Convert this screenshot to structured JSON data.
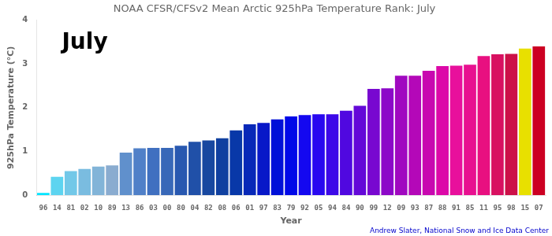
{
  "chart_data": {
    "type": "bar",
    "title": "NOAA CFSR/CFSv2 Mean Arctic 925hPa Temperature Rank: July",
    "xlabel": "Year",
    "ylabel": "925hPa Temperature (°C)",
    "annotations": [
      "July",
      "Andrew Slater, National Snow and Ice Data Center"
    ],
    "categories": [
      "96",
      "14",
      "81",
      "02",
      "10",
      "89",
      "13",
      "86",
      "03",
      "00",
      "80",
      "04",
      "82",
      "08",
      "06",
      "01",
      "97",
      "83",
      "79",
      "92",
      "05",
      "94",
      "84",
      "90",
      "99",
      "12",
      "09",
      "93",
      "87",
      "88",
      "91",
      "85",
      "11",
      "95",
      "98",
      "15",
      "07"
    ],
    "values": [
      0.05,
      0.42,
      0.55,
      0.6,
      0.65,
      0.68,
      0.97,
      1.07,
      1.08,
      1.08,
      1.13,
      1.22,
      1.25,
      1.3,
      1.48,
      1.62,
      1.65,
      1.73,
      1.8,
      1.83,
      1.85,
      1.85,
      1.93,
      2.04,
      2.43,
      2.44,
      2.73,
      2.73,
      2.84,
      2.95,
      2.96,
      2.98,
      3.18,
      3.22,
      3.23,
      3.35,
      3.4
    ],
    "colors": [
      "#00e5ff",
      "#5dd4f0",
      "#72c8e8",
      "#7abce0",
      "#82b4d8",
      "#8aacd0",
      "#6090cc",
      "#5080c8",
      "#4070c0",
      "#3868b8",
      "#2858b0",
      "#2050a8",
      "#1848a0",
      "#1040a0",
      "#0838a8",
      "#0828b8",
      "#0818c8",
      "#0010d8",
      "#0008e8",
      "#1408f0",
      "#2808f0",
      "#3c08e8",
      "#5008e0",
      "#6408d8",
      "#7808d0",
      "#8c08c8",
      "#a008c0",
      "#b408b8",
      "#c808b0",
      "#dc08a8",
      "#e8109c",
      "#e81090",
      "#e81080",
      "#d81060",
      "#cc1048",
      "#e8e000",
      "#cc0022"
    ],
    "ylim": [
      0,
      4
    ],
    "yticks": [
      0,
      1,
      2,
      3,
      4
    ],
    "grid": false
  }
}
